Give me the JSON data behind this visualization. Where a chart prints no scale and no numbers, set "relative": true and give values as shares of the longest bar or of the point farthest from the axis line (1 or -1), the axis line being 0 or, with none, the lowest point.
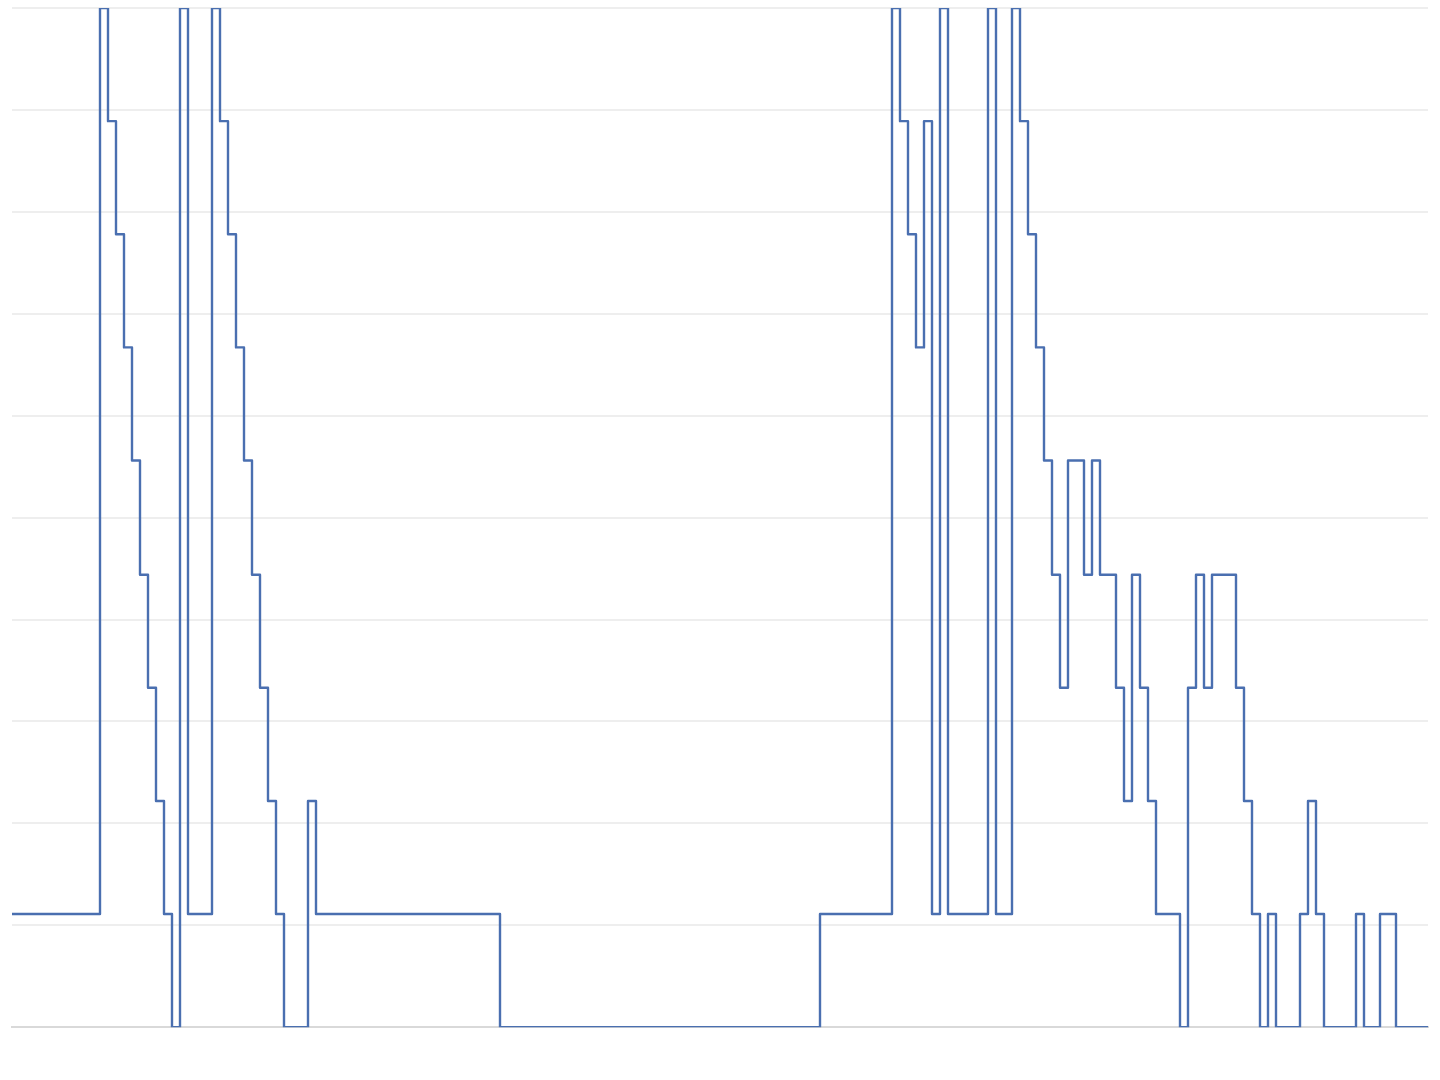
{
  "chart_data": {
    "type": "step",
    "relative": true,
    "grid": "y",
    "legend": false,
    "categories": [
      null,
      null,
      null,
      null,
      null,
      null,
      null,
      null,
      null,
      null,
      null,
      null,
      null,
      null,
      null,
      null,
      null,
      null,
      null,
      null,
      null,
      null,
      null,
      null,
      null,
      null,
      null,
      null,
      null,
      null,
      null,
      null,
      null,
      null,
      null,
      null,
      null,
      null,
      null,
      null,
      null,
      null,
      null,
      null,
      null,
      null,
      null,
      null,
      null,
      null,
      null,
      null,
      null,
      null,
      null,
      null,
      null,
      null,
      null,
      null,
      null,
      null,
      null,
      null,
      null,
      null,
      null,
      null,
      null,
      null,
      null,
      null,
      null,
      null,
      null,
      null,
      null,
      null,
      null,
      null,
      null,
      null,
      null,
      null,
      null,
      null,
      null,
      null,
      null,
      null,
      null,
      null,
      null,
      null,
      null,
      null,
      null,
      null,
      null,
      null,
      null,
      null,
      null,
      null,
      null,
      null,
      null,
      null,
      null,
      null,
      null,
      null,
      null,
      null,
      null,
      null,
      null,
      null,
      null,
      null,
      null,
      null,
      null,
      null,
      null,
      null,
      null,
      null,
      null,
      null,
      null,
      null,
      null,
      null,
      null,
      null,
      null,
      null,
      null,
      null,
      null,
      null,
      null,
      null,
      null,
      null,
      null,
      null,
      null,
      null,
      null,
      null,
      null,
      null,
      null,
      null,
      null,
      null,
      null,
      null,
      null,
      null,
      null,
      null,
      null,
      null,
      null,
      null,
      null,
      null,
      null,
      null,
      null,
      null,
      null,
      null,
      null,
      null
    ],
    "series": [
      {
        "color": "#4a6fb0",
        "values": [
          0.111,
          0.111,
          0.111,
          0.111,
          0.111,
          0.111,
          0.111,
          0.111,
          0.111,
          0.111,
          0.111,
          0.111,
          1,
          0.889,
          0.778,
          0.667,
          0.556,
          0.444,
          0.333,
          0.222,
          0.111,
          0,
          1,
          0.111,
          0.111,
          0.111,
          1,
          0.889,
          0.778,
          0.667,
          0.556,
          0.444,
          0.333,
          0.222,
          0.111,
          0,
          0,
          0,
          0.222,
          0.111,
          0.111,
          0.111,
          0.111,
          0.111,
          0.111,
          0.111,
          0.111,
          0.111,
          0.111,
          0.111,
          0.111,
          0.111,
          0.111,
          0.111,
          0.111,
          0.111,
          0.111,
          0.111,
          0.111,
          0.111,
          0.111,
          0.111,
          0,
          0,
          0,
          0,
          0,
          0,
          0,
          0,
          0,
          0,
          0,
          0,
          0,
          0,
          0,
          0,
          0,
          0,
          0,
          0,
          0,
          0,
          0,
          0,
          0,
          0,
          0,
          0,
          0,
          0,
          0,
          0,
          0,
          0,
          0,
          0,
          0,
          0,
          0,
          0,
          0.111,
          0.111,
          0.111,
          0.111,
          0.111,
          0.111,
          0.111,
          0.111,
          0.111,
          1,
          0.889,
          0.778,
          0.667,
          0.889,
          0.111,
          1,
          0.111,
          0.111,
          0.111,
          0.111,
          0.111,
          1,
          0.111,
          0.111,
          1,
          0.889,
          0.778,
          0.667,
          0.556,
          0.444,
          0.333,
          0.556,
          0.556,
          0.444,
          0.556,
          0.444,
          0.444,
          0.333,
          0.222,
          0.444,
          0.333,
          0.222,
          0.111,
          0.111,
          0.111,
          0,
          0.333,
          0.444,
          0.333,
          0.444,
          0.444,
          0.444,
          0.333,
          0.222,
          0.111,
          0,
          0.111,
          0,
          0,
          0,
          0.111,
          0.222,
          0.111,
          0,
          0,
          0,
          0,
          0.111,
          0,
          0,
          0.111,
          0.111,
          0,
          0,
          0,
          0
        ]
      }
    ]
  }
}
